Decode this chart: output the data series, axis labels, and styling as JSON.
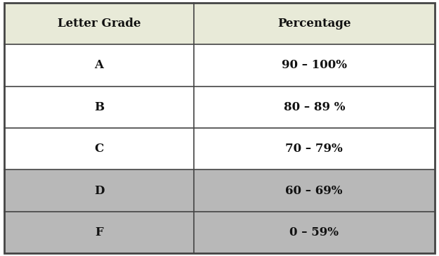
{
  "headers": [
    "Letter Grade",
    "Percentage"
  ],
  "rows": [
    [
      "A",
      "90 – 100%"
    ],
    [
      "B",
      "80 – 89 %"
    ],
    [
      "C",
      "70 – 79%"
    ],
    [
      "D",
      "60 – 69%"
    ],
    [
      "F",
      "0 – 59%"
    ]
  ],
  "header_bg": "#e8ead8",
  "row_bg_white": "#ffffff",
  "row_bg_gray": "#b8b8b8",
  "row_bg_lightgray": "#c8c8c8",
  "gray_rows": [
    3,
    4
  ],
  "border_color": "#444444",
  "text_color": "#111111",
  "header_fontsize": 12,
  "cell_fontsize": 12,
  "col_split": 0.44,
  "fig_width": 6.25,
  "fig_height": 3.64,
  "dpi": 100,
  "outer_border_lw": 2.0,
  "inner_border_lw": 1.2
}
